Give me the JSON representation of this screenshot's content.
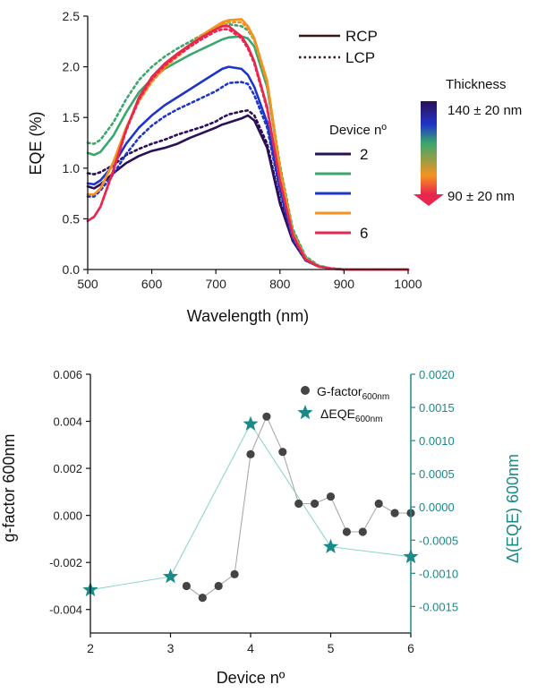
{
  "chart_data": [
    {
      "type": "line",
      "xlabel": "Wavelength (nm)",
      "ylabel": "EQE (%)",
      "xlim": [
        500,
        1000
      ],
      "ylim": [
        0,
        2.5
      ],
      "xticks": [
        "500",
        "600",
        "700",
        "800",
        "900",
        "1000"
      ],
      "yticks": [
        "0.0",
        "0.5",
        "1.0",
        "1.5",
        "2.0",
        "2.5"
      ],
      "x": [
        500,
        510,
        520,
        540,
        560,
        580,
        600,
        620,
        640,
        660,
        680,
        700,
        710,
        720,
        740,
        750,
        760,
        780,
        800,
        820,
        840,
        860,
        880,
        900,
        950,
        1000
      ],
      "series": [
        {
          "name": "2",
          "polarization": "RCP",
          "color": "#2b0f57",
          "values": [
            0.82,
            0.8,
            0.84,
            0.95,
            1.05,
            1.12,
            1.17,
            1.2,
            1.24,
            1.3,
            1.35,
            1.4,
            1.43,
            1.45,
            1.49,
            1.52,
            1.47,
            1.2,
            0.65,
            0.28,
            0.09,
            0.03,
            0.01,
            0.0,
            0.0,
            0.0
          ]
        },
        {
          "name": "2",
          "polarization": "LCP",
          "color": "#2b0f57",
          "values": [
            0.95,
            0.94,
            0.96,
            1.03,
            1.13,
            1.19,
            1.24,
            1.28,
            1.33,
            1.37,
            1.41,
            1.46,
            1.5,
            1.53,
            1.56,
            1.57,
            1.52,
            1.24,
            0.68,
            0.3,
            0.1,
            0.03,
            0.01,
            0.0,
            0.0,
            0.0
          ]
        },
        {
          "name": "",
          "polarization": "RCP",
          "color": "#3aa76d",
          "values": [
            1.15,
            1.13,
            1.16,
            1.32,
            1.55,
            1.75,
            1.88,
            1.98,
            2.05,
            2.12,
            2.18,
            2.24,
            2.27,
            2.29,
            2.3,
            2.28,
            2.2,
            1.8,
            1.0,
            0.38,
            0.12,
            0.03,
            0.01,
            0.0,
            0.0,
            0.0
          ]
        },
        {
          "name": "",
          "polarization": "LCP",
          "color": "#3aa76d",
          "values": [
            1.25,
            1.24,
            1.28,
            1.45,
            1.68,
            1.87,
            2.0,
            2.1,
            2.18,
            2.25,
            2.32,
            2.38,
            2.41,
            2.42,
            2.4,
            2.36,
            2.26,
            1.85,
            1.03,
            0.4,
            0.13,
            0.04,
            0.01,
            0.0,
            0.0,
            0.0
          ]
        },
        {
          "name": "",
          "polarization": "RCP",
          "color": "#1f35c7",
          "values": [
            0.85,
            0.84,
            0.88,
            1.03,
            1.24,
            1.4,
            1.52,
            1.62,
            1.7,
            1.78,
            1.86,
            1.94,
            1.98,
            2.0,
            1.98,
            1.92,
            1.8,
            1.45,
            0.8,
            0.32,
            0.1,
            0.03,
            0.01,
            0.0,
            0.0,
            0.0
          ]
        },
        {
          "name": "",
          "polarization": "LCP",
          "color": "#1f35c7",
          "values": [
            0.72,
            0.72,
            0.78,
            0.94,
            1.14,
            1.3,
            1.42,
            1.51,
            1.58,
            1.64,
            1.7,
            1.76,
            1.8,
            1.84,
            1.85,
            1.83,
            1.72,
            1.4,
            0.77,
            0.3,
            0.09,
            0.03,
            0.01,
            0.0,
            0.0,
            0.0
          ]
        },
        {
          "name": "",
          "polarization": "RCP",
          "color": "#f5921e",
          "values": [
            0.74,
            0.74,
            0.8,
            1.06,
            1.4,
            1.67,
            1.86,
            2.0,
            2.12,
            2.22,
            2.32,
            2.4,
            2.44,
            2.46,
            2.47,
            2.4,
            2.28,
            1.86,
            1.0,
            0.36,
            0.11,
            0.03,
            0.01,
            0.0,
            0.0,
            0.0
          ]
        },
        {
          "name": "",
          "polarization": "LCP",
          "color": "#f5921e",
          "values": [
            0.74,
            0.74,
            0.8,
            1.05,
            1.39,
            1.66,
            1.85,
            1.99,
            2.1,
            2.2,
            2.3,
            2.38,
            2.42,
            2.44,
            2.44,
            2.38,
            2.26,
            1.84,
            0.99,
            0.36,
            0.11,
            0.03,
            0.01,
            0.0,
            0.0,
            0.0
          ]
        },
        {
          "name": "6",
          "polarization": "RCP",
          "color": "#e8264f",
          "values": [
            0.48,
            0.52,
            0.62,
            0.98,
            1.38,
            1.7,
            1.9,
            2.03,
            2.13,
            2.22,
            2.3,
            2.37,
            2.4,
            2.4,
            2.3,
            2.2,
            2.05,
            1.6,
            0.88,
            0.34,
            0.1,
            0.03,
            0.01,
            0.0,
            0.0,
            0.0
          ]
        },
        {
          "name": "6",
          "polarization": "LCP",
          "color": "#e8264f",
          "values": [
            0.48,
            0.52,
            0.62,
            0.97,
            1.37,
            1.68,
            1.88,
            2.01,
            2.11,
            2.2,
            2.28,
            2.35,
            2.37,
            2.37,
            2.28,
            2.18,
            2.03,
            1.58,
            0.87,
            0.33,
            0.1,
            0.03,
            0.01,
            0.0,
            0.0,
            0.0
          ]
        }
      ],
      "legend_polarization": [
        "RCP",
        "LCP"
      ],
      "legend_device_title": "Device nº",
      "legend_device_labels": [
        "2",
        "",
        "",
        "",
        "6"
      ],
      "legend_device_colors": [
        "#2b0f57",
        "#3aa76d",
        "#1f35c7",
        "#f5921e",
        "#e8264f"
      ],
      "colorbar_title": "Thickness",
      "colorbar_top_label": "140 ± 20 nm",
      "colorbar_bottom_label": "90 ± 20 nm",
      "colorbar_colors": [
        "#2b0f57",
        "#1f35c7",
        "#3aa76d",
        "#f5921e",
        "#e8264f"
      ],
      "grid": false
    },
    {
      "type": "line",
      "xlabel": "Device nº",
      "ylabel_left": "g-factor 600nm",
      "ylabel_right": "Δ(EQE) 600nm",
      "xlim": [
        2,
        6
      ],
      "ylim_left": [
        -0.005,
        0.006
      ],
      "ylim_right": [
        -0.0019,
        0.002
      ],
      "xticks": [
        "2",
        "3",
        "4",
        "5",
        "6"
      ],
      "yticks_left": [
        "-0.004",
        "-0.002",
        "0.000",
        "0.002",
        "0.004",
        "0.006"
      ],
      "yticks_right": [
        "-0.0015",
        "-0.0010",
        "-0.0005",
        "0.0000",
        "0.0005",
        "0.0010",
        "0.0015",
        "0.0020"
      ],
      "series": [
        {
          "name": "G-factor600nm",
          "legend_main": "G-factor",
          "legend_sub": "600nm",
          "axis": "left",
          "marker": "circle",
          "color": "#444444",
          "line_color": "#aaaaaa",
          "x": [
            3.2,
            3.4,
            3.6,
            3.8,
            4.0,
            4.2,
            4.4,
            4.6,
            4.8,
            5.0,
            5.2,
            5.4,
            5.6,
            5.8,
            6.0
          ],
          "values": [
            -0.003,
            -0.0035,
            -0.003,
            -0.0025,
            0.0026,
            0.0042,
            0.0027,
            0.0005,
            0.0005,
            0.0008,
            -0.0007,
            -0.0007,
            0.0005,
            0.0001,
            0.0001
          ]
        },
        {
          "name": "ΔEQE600nm",
          "legend_main": "ΔEQE",
          "legend_sub": "600nm",
          "axis": "right",
          "marker": "star",
          "color": "#1a8a88",
          "line_color": "#8fd6cf",
          "x": [
            2,
            3,
            4,
            5,
            6
          ],
          "values": [
            -0.00125,
            -0.00105,
            0.00125,
            -0.0006,
            -0.00075
          ]
        }
      ],
      "legend_position": "top-right",
      "grid": false
    }
  ]
}
